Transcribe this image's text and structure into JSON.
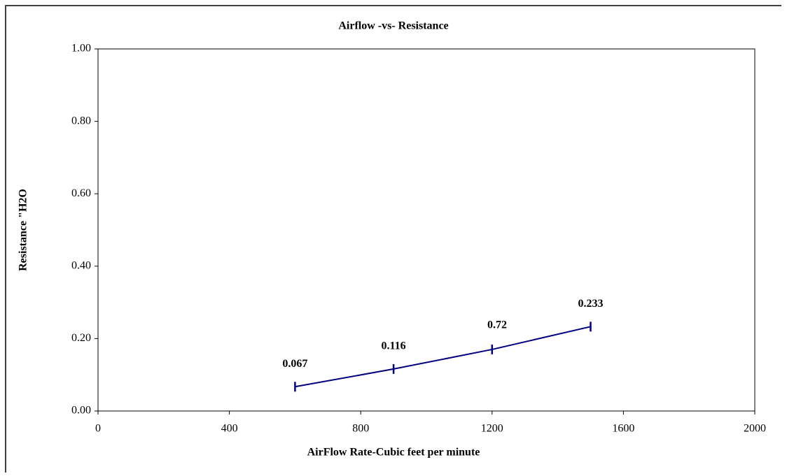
{
  "chart_data": {
    "type": "line",
    "title": "Airflow -vs- Resistance",
    "x_label": "AirFlow Rate-Cubic feet per minute",
    "y_label": "Resistance \"H2O",
    "x": [
      600,
      900,
      1200,
      1500
    ],
    "series": [
      {
        "name": "Resistance",
        "color": "#000080",
        "values": [
          0.067,
          0.116,
          0.17,
          0.233
        ]
      }
    ],
    "data_labels": [
      true,
      true,
      false,
      true
    ],
    "annotations": [
      "0.72"
    ],
    "xlim": [
      0,
      2000
    ],
    "xticks": [
      0,
      400,
      800,
      1200,
      1600,
      2000
    ],
    "ylim": [
      0,
      1
    ],
    "yticks": [
      {
        "value": 0,
        "label": "0.00"
      },
      {
        "value": 0.2,
        "label": "0.20"
      },
      {
        "value": 0.4,
        "label": "0.40"
      },
      {
        "value": 0.6,
        "label": "0.60"
      },
      {
        "value": 0.8,
        "label": "0.80"
      },
      {
        "value": 1,
        "label": "1.00"
      }
    ]
  }
}
